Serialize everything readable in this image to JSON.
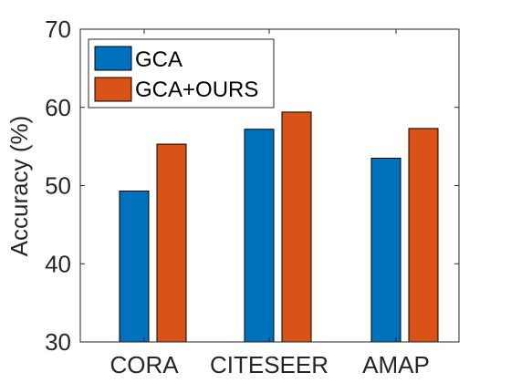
{
  "chart_data": {
    "type": "bar",
    "categories": [
      "CORA",
      "CITESEER",
      "AMAP"
    ],
    "series": [
      {
        "name": "GCA",
        "values": [
          49.3,
          57.2,
          53.5
        ],
        "color": "#0072BD"
      },
      {
        "name": "GCA+OURS",
        "values": [
          55.3,
          59.4,
          57.3
        ],
        "color": "#D95319"
      }
    ],
    "title": "",
    "xlabel": "",
    "ylabel": "Accuracy (%)",
    "ylim": [
      30,
      70
    ],
    "yticks": [
      30,
      40,
      50,
      60,
      70
    ],
    "grid": false,
    "legend_position": "top-left"
  }
}
